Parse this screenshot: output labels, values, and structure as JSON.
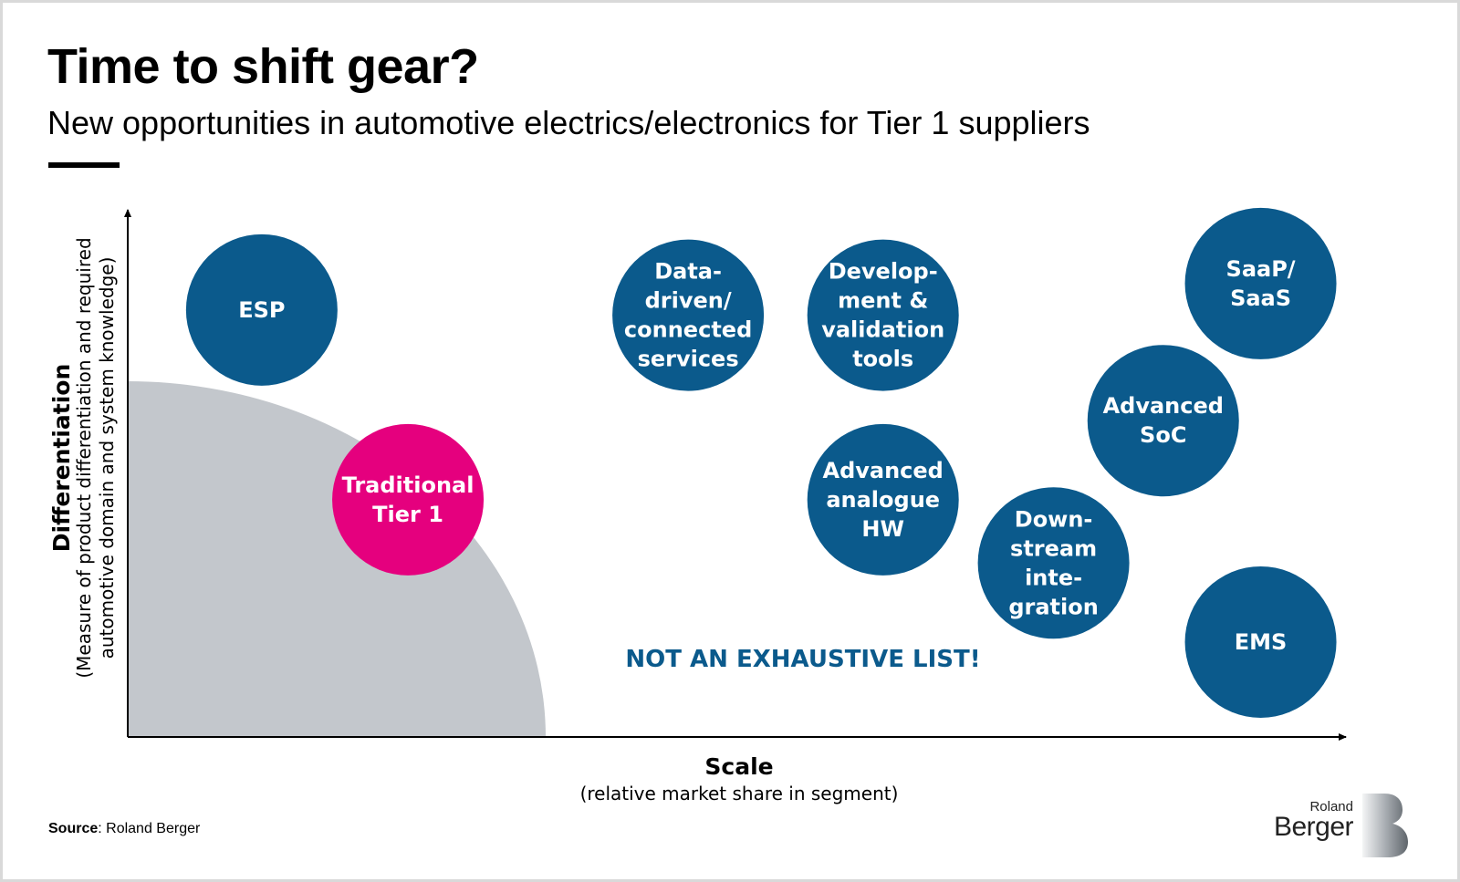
{
  "header": {
    "title": "Time to shift gear?",
    "subtitle": "New opportunities in automotive electrics/electronics for Tier 1 suppliers"
  },
  "chart_data": {
    "type": "bubble-matrix",
    "xlabel": "Scale",
    "xlabel_sub": "(relative market share in segment)",
    "ylabel": "Differentiation",
    "ylabel_sub_line1": "(Measure of product differentiation and required",
    "ylabel_sub_line2": "automotive domain and system knowledge)",
    "note": "NOT AN EXHAUSTIVE LIST!",
    "colors": {
      "bubble": "#0b5a8c",
      "highlight": "#e5007e",
      "zone": "#c3c7cc",
      "axis": "#000000"
    },
    "bubbles": [
      {
        "label": [
          "ESP"
        ],
        "x": 0.11,
        "y": 0.81,
        "highlight": false
      },
      {
        "label": [
          "Traditional",
          "Tier 1"
        ],
        "x": 0.23,
        "y": 0.45,
        "highlight": true
      },
      {
        "label": [
          "Data-",
          "driven/",
          "connected",
          "services"
        ],
        "x": 0.46,
        "y": 0.8,
        "highlight": false
      },
      {
        "label": [
          "Develop-",
          "ment &",
          "validation",
          "tools"
        ],
        "x": 0.62,
        "y": 0.8,
        "highlight": false
      },
      {
        "label": [
          "Advanced",
          "analogue",
          "HW"
        ],
        "x": 0.62,
        "y": 0.45,
        "highlight": false
      },
      {
        "label": [
          "Down-",
          "stream",
          "inte-",
          "gration"
        ],
        "x": 0.76,
        "y": 0.33,
        "highlight": false
      },
      {
        "label": [
          "Advanced",
          "SoC"
        ],
        "x": 0.85,
        "y": 0.6,
        "highlight": false
      },
      {
        "label": [
          "SaaP/",
          "SaaS"
        ],
        "x": 0.93,
        "y": 0.86,
        "highlight": false
      },
      {
        "label": [
          "EMS"
        ],
        "x": 0.93,
        "y": 0.18,
        "highlight": false
      }
    ]
  },
  "footer": {
    "source_label": "Source",
    "source_text": ": Roland Berger"
  },
  "logo": {
    "small": "Roland",
    "big": "Berger"
  }
}
